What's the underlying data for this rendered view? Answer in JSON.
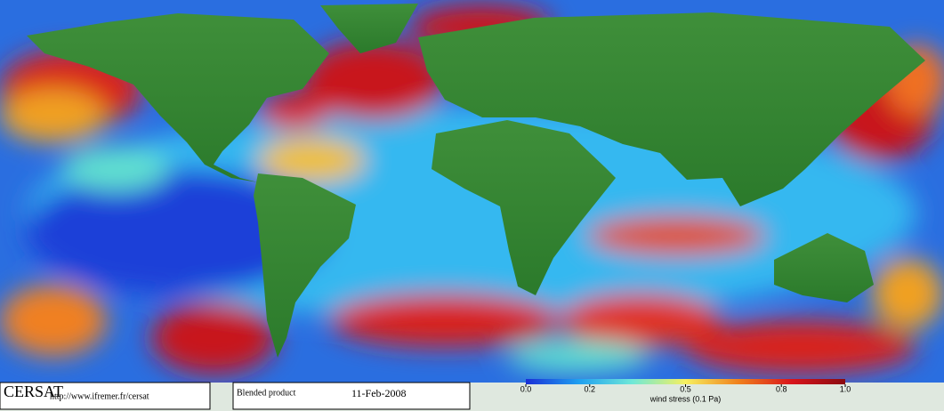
{
  "footer": {
    "logo": "CERSAT",
    "url": "http://www.ifremer.fr/cersat",
    "product": "Blended product",
    "date": "11-Feb-2008"
  },
  "colorbar": {
    "lim": [
      0,
      1
    ],
    "ticks": [
      {
        "value": 0,
        "label": "0.0"
      },
      0.2,
      0.5,
      0.8,
      {
        "value": 1,
        "label": "1.0"
      }
    ],
    "label": "wind stress (0.1 Pa)",
    "colors": [
      "#1a2fd6",
      "#1fa0f0",
      "#6fe8d8",
      "#f6f060",
      "#f0801c",
      "#d8141c",
      "#8a0a10"
    ]
  }
}
